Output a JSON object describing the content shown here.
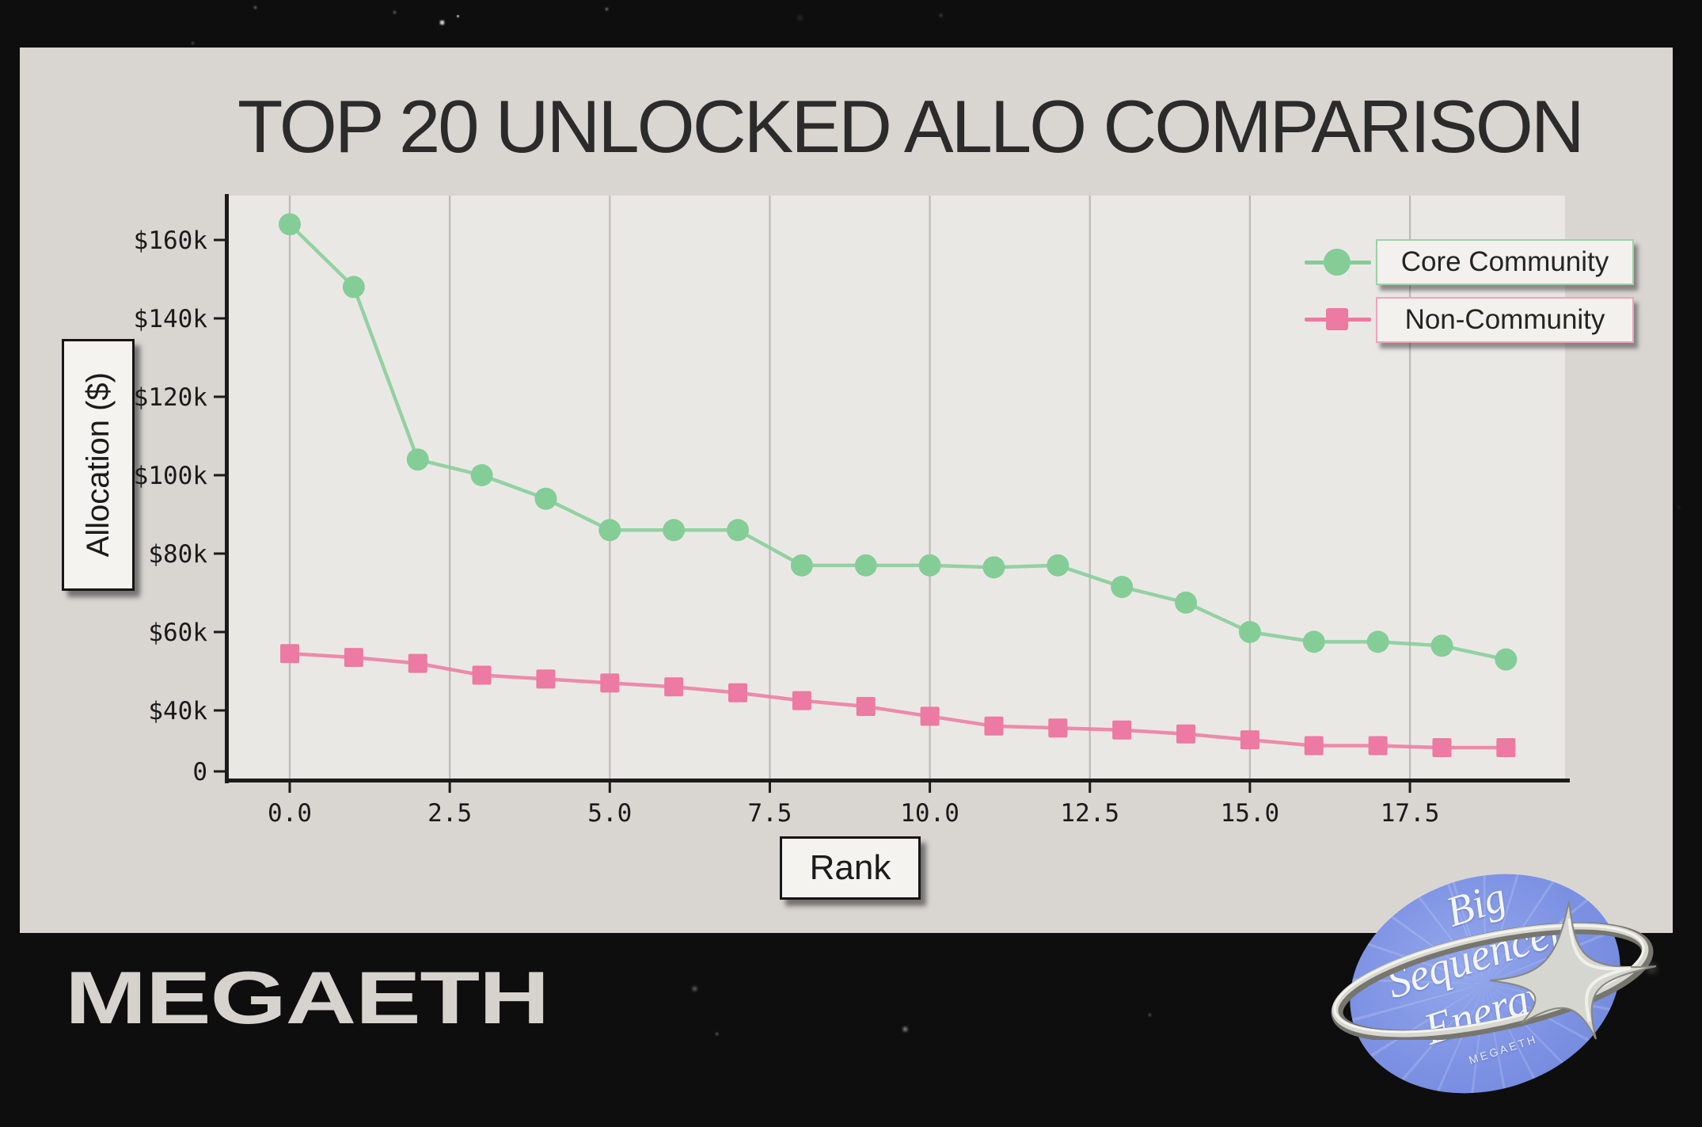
{
  "title": "TOP 20 UNLOCKED ALLO COMPARISON",
  "colors": {
    "background": "#0e0e0e",
    "card_bg": "#d9d6d2",
    "plot_bg": "#eae8e5",
    "grid": "#bcbab7",
    "spine": "#1b1b1b",
    "tick_text": "#1a1a1a",
    "accent_green": "#84CD96",
    "accent_pink": "#EC7AA2",
    "badge_blue": "#7d92e3",
    "wordmark_text": "#d6d3ce"
  },
  "chart_data": {
    "type": "line",
    "title": "TOP 20 UNLOCKED ALLO COMPARISON",
    "xlabel": "Rank",
    "ylabel": "Allocation ($)",
    "grid": "vertical-only",
    "legend_position": "top-right",
    "x": [
      0,
      1,
      2,
      3,
      4,
      5,
      6,
      7,
      8,
      9,
      10,
      11,
      12,
      13,
      14,
      15,
      16,
      17,
      18,
      19
    ],
    "series": [
      {
        "name": "Core Community",
        "marker": "circle",
        "color": "#84CD96",
        "values": [
          164000,
          148000,
          104000,
          100000,
          94000,
          86000,
          86000,
          86000,
          77000,
          77000,
          77000,
          76500,
          77000,
          71500,
          67500,
          60000,
          57500,
          57500,
          56500,
          53000
        ]
      },
      {
        "name": "Non-Community",
        "marker": "square",
        "color": "#EC7AA2",
        "values": [
          54500,
          53500,
          52000,
          49000,
          48000,
          47000,
          46000,
          44500,
          42500,
          41000,
          38500,
          36000,
          35500,
          35000,
          34000,
          32500,
          31000,
          31000,
          30500,
          30500
        ]
      }
    ],
    "y_ticks": [
      {
        "label": "$160k",
        "value": 160000
      },
      {
        "label": "$140k",
        "value": 140000
      },
      {
        "label": "$120k",
        "value": 120000
      },
      {
        "label": "$100k",
        "value": 100000
      },
      {
        "label": "$80k",
        "value": 80000
      },
      {
        "label": "$60k",
        "value": 60000
      },
      {
        "label": "$40k",
        "value": 40000
      },
      {
        "label": "0",
        "value": 0
      }
    ],
    "x_ticks": [
      {
        "label": "0.0",
        "value": 0
      },
      {
        "label": "2.5",
        "value": 2.5
      },
      {
        "label": "5.0",
        "value": 5
      },
      {
        "label": "7.5",
        "value": 7.5
      },
      {
        "label": "10.0",
        "value": 10
      },
      {
        "label": "12.5",
        "value": 12.5
      },
      {
        "label": "15.0",
        "value": 15
      },
      {
        "label": "17.5",
        "value": 17.5
      }
    ],
    "y_axis_note": "0 tick sits at the truncated axis floor"
  },
  "legend": {
    "items": [
      {
        "label": "Core Community",
        "marker": "circle",
        "color": "#84CD96"
      },
      {
        "label": "Non-Community",
        "marker": "square",
        "color": "#EC7AA2"
      }
    ]
  },
  "branding": {
    "wordmark": "MEGAETH",
    "badge": {
      "line1": "Big",
      "line2": "Sequencer",
      "line3": "Energy",
      "sub": "MEGAETH"
    }
  }
}
